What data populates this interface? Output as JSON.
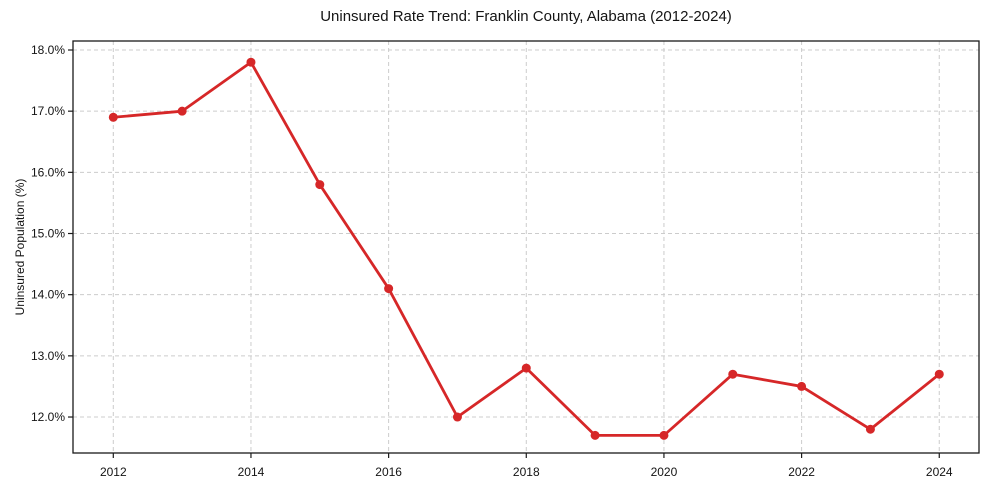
{
  "chart_data": {
    "type": "line",
    "title": "Uninsured Rate Trend: Franklin County, Alabama (2012-2024)",
    "xlabel": "",
    "ylabel": "Uninsured Population (%)",
    "x": [
      2012,
      2013,
      2014,
      2015,
      2016,
      2017,
      2018,
      2019,
      2020,
      2021,
      2022,
      2023,
      2024
    ],
    "values": [
      16.9,
      17.0,
      17.8,
      15.8,
      14.1,
      12.0,
      12.8,
      11.7,
      11.7,
      12.7,
      12.5,
      11.8,
      12.7
    ],
    "xticks": [
      2012,
      2014,
      2016,
      2018,
      2020,
      2022,
      2024
    ],
    "xtick_labels": [
      "2012",
      "2014",
      "2016",
      "2018",
      "2020",
      "2022",
      "2024"
    ],
    "yticks": [
      12,
      13,
      14,
      15,
      16,
      17,
      18
    ],
    "ytick_labels": [
      "12.0%",
      "13.0%",
      "14.0%",
      "15.0%",
      "16.0%",
      "17.0%",
      "18.0%"
    ],
    "xlim": [
      2011.4,
      2024.6
    ],
    "ylim": [
      11.4,
      18.17
    ],
    "grid": "dashed",
    "grid_on": true,
    "legend": false,
    "line_color": "#d62728",
    "grid_color": "#cccccc",
    "frame_color": "#1a1a1a",
    "marker": "circle"
  }
}
